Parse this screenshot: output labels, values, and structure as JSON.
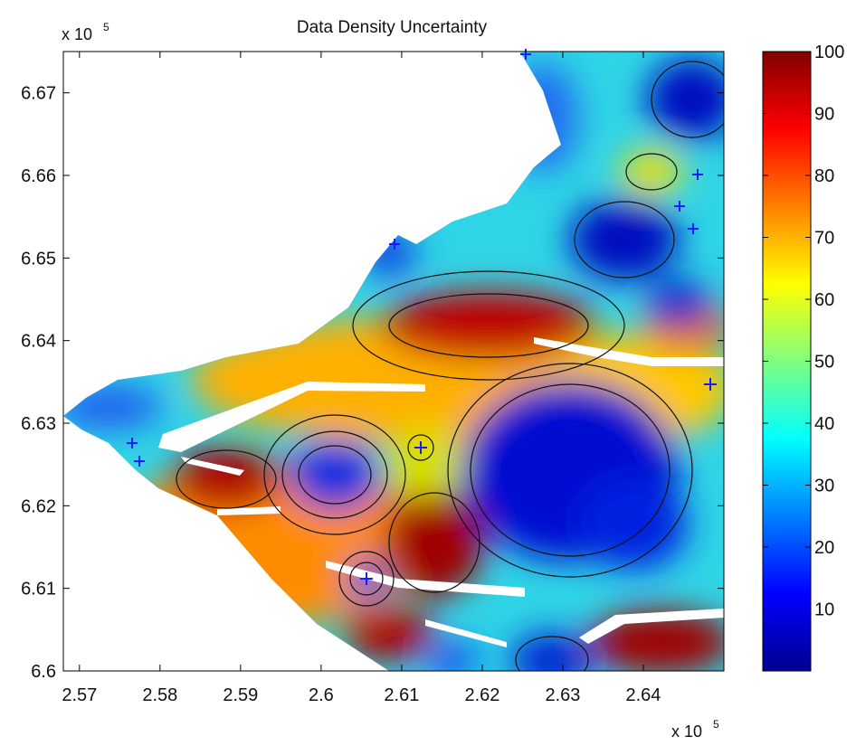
{
  "chart_data": {
    "type": "heatmap",
    "title": "Data Density Uncertainty",
    "xlabel": "",
    "ylabel": "",
    "x_multiplier": "x 10",
    "x_multiplier_exp": "5",
    "y_multiplier": "x 10",
    "y_multiplier_exp": "5",
    "xlim": [
      2.568,
      2.65
    ],
    "ylim": [
      6.6,
      6.675
    ],
    "xticks": [
      2.57,
      2.58,
      2.59,
      2.6,
      2.61,
      2.62,
      2.63,
      2.64
    ],
    "xtick_labels": [
      "2.57",
      "2.58",
      "2.59",
      "2.6",
      "2.61",
      "2.62",
      "2.63",
      "2.64"
    ],
    "yticks": [
      6.6,
      6.61,
      6.62,
      6.63,
      6.64,
      6.65,
      6.66,
      6.67
    ],
    "ytick_labels": [
      "6.6",
      "6.61",
      "6.62",
      "6.63",
      "6.64",
      "6.65",
      "6.66",
      "6.67"
    ],
    "colorbar": {
      "colormap": "jet",
      "range": [
        0,
        100
      ],
      "ticks": [
        10,
        20,
        30,
        40,
        50,
        60,
        70,
        80,
        90,
        100
      ],
      "tick_labels": [
        "10",
        "20",
        "30",
        "40",
        "50",
        "60",
        "70",
        "80",
        "90",
        "100"
      ]
    },
    "grid": false,
    "features": {
      "high_uncertainty_cores": [
        {
          "x": 2.615,
          "y": 6.641,
          "value": 100
        },
        {
          "x": 2.583,
          "y": 6.623,
          "value": 100
        },
        {
          "x": 2.613,
          "y": 6.615,
          "value": 100
        },
        {
          "x": 2.643,
          "y": 6.604,
          "value": 100
        },
        {
          "x": 2.6,
          "y": 6.604,
          "value": 100
        }
      ],
      "low_uncertainty_cores": [
        {
          "x": 2.6,
          "y": 6.624,
          "value": 5
        },
        {
          "x": 2.627,
          "y": 6.622,
          "value": 5
        },
        {
          "x": 2.64,
          "y": 6.626,
          "value": 5
        },
        {
          "x": 2.633,
          "y": 6.653,
          "value": 5
        },
        {
          "x": 2.646,
          "y": 6.671,
          "value": 5
        },
        {
          "x": 2.629,
          "y": 6.601,
          "value": 5
        }
      ]
    }
  }
}
